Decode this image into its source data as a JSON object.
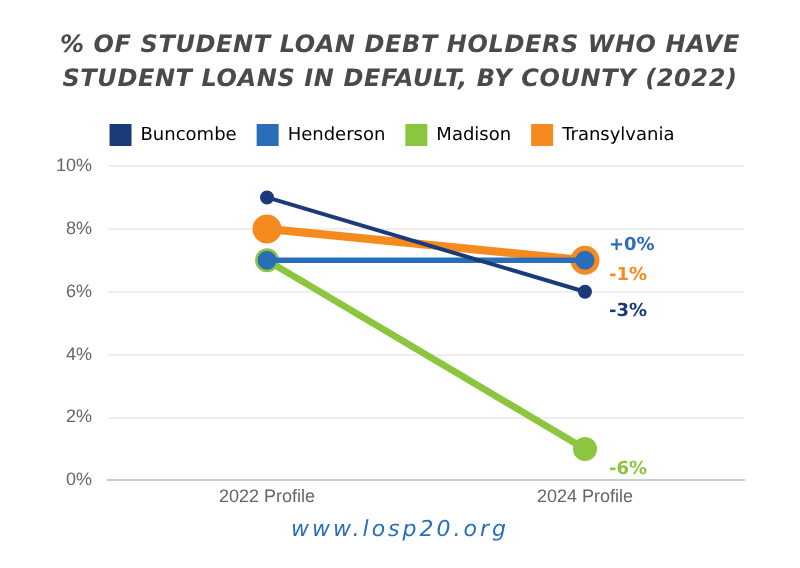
{
  "chart_data": {
    "type": "line",
    "title": "% OF STUDENT LOAN DEBT HOLDERS WHO HAVE STUDENT LOANS IN DEFAULT, BY COUNTY (2022)",
    "categories": [
      "2022 Profile",
      "2024 Profile"
    ],
    "series": [
      {
        "name": "Buncombe",
        "color": "#1a3a7a",
        "values": [
          9,
          6
        ]
      },
      {
        "name": "Henderson",
        "color": "#2a6db8",
        "values": [
          7,
          7
        ]
      },
      {
        "name": "Madison",
        "color": "#8cc63f",
        "values": [
          7,
          1
        ]
      },
      {
        "name": "Transylvania",
        "color": "#f58a1f",
        "values": [
          8,
          7
        ]
      }
    ],
    "ylim": [
      0,
      10
    ],
    "yticks": [
      {
        "value": 0,
        "label": "0%"
      },
      {
        "value": 2,
        "label": "2%"
      },
      {
        "value": 4,
        "label": "4%"
      },
      {
        "value": 6,
        "label": "6%"
      },
      {
        "value": 8,
        "label": "8%"
      },
      {
        "value": 10,
        "label": "10%"
      }
    ],
    "grid": "y",
    "legend": "top",
    "marker": "circle",
    "annotations": [
      {
        "text": "-3%",
        "x": "2024 Profile",
        "y": 6
      },
      {
        "text": "+0%",
        "x": "2024 Profile",
        "y": 7
      },
      {
        "text": "-6%",
        "x": "2024 Profile",
        "y": 1
      },
      {
        "text": "-1%",
        "x": "2024 Profile",
        "y": 7
      },
      "www.losp20.org"
    ]
  }
}
